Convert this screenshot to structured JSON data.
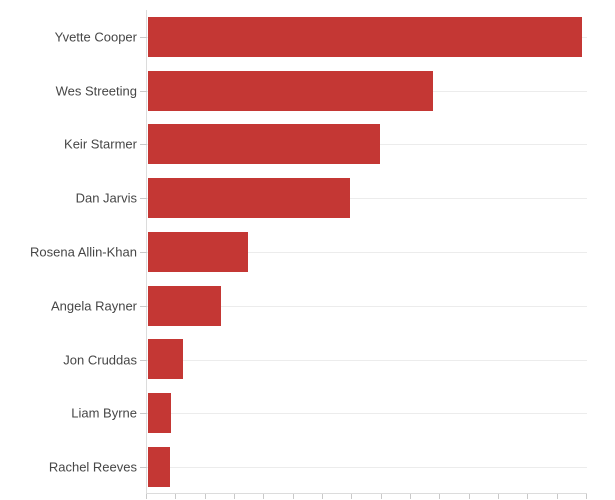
{
  "chart_data": {
    "type": "bar",
    "orientation": "horizontal",
    "title": "",
    "categories": [
      "Yvette Cooper",
      "Wes Streeting",
      "Keir Starmer",
      "Dan Jarvis",
      "Rosena Allin-Khan",
      "Angela Rayner",
      "Jon Cruddas",
      "Liam Byrne",
      "Rachel Reeves"
    ],
    "values": [
      14.8,
      9.7,
      7.9,
      6.9,
      3.4,
      2.5,
      1.2,
      0.78,
      0.74
    ],
    "xlabel": "",
    "ylabel": "",
    "xlim": [
      0,
      15
    ],
    "x_tick_interval": 1,
    "x_tick_count": 16,
    "x_tick_labels_visible": false,
    "grid": "horizontal gridline at each bar row center",
    "legend": "none",
    "bar_color": "#c43734",
    "colors": {
      "bar": "#c43734",
      "axis_line": "#dcdcdc",
      "tick_mark": "#c9c9c9",
      "gridline": "#ececec",
      "label_text": "#464646",
      "background": "#ffffff"
    }
  }
}
